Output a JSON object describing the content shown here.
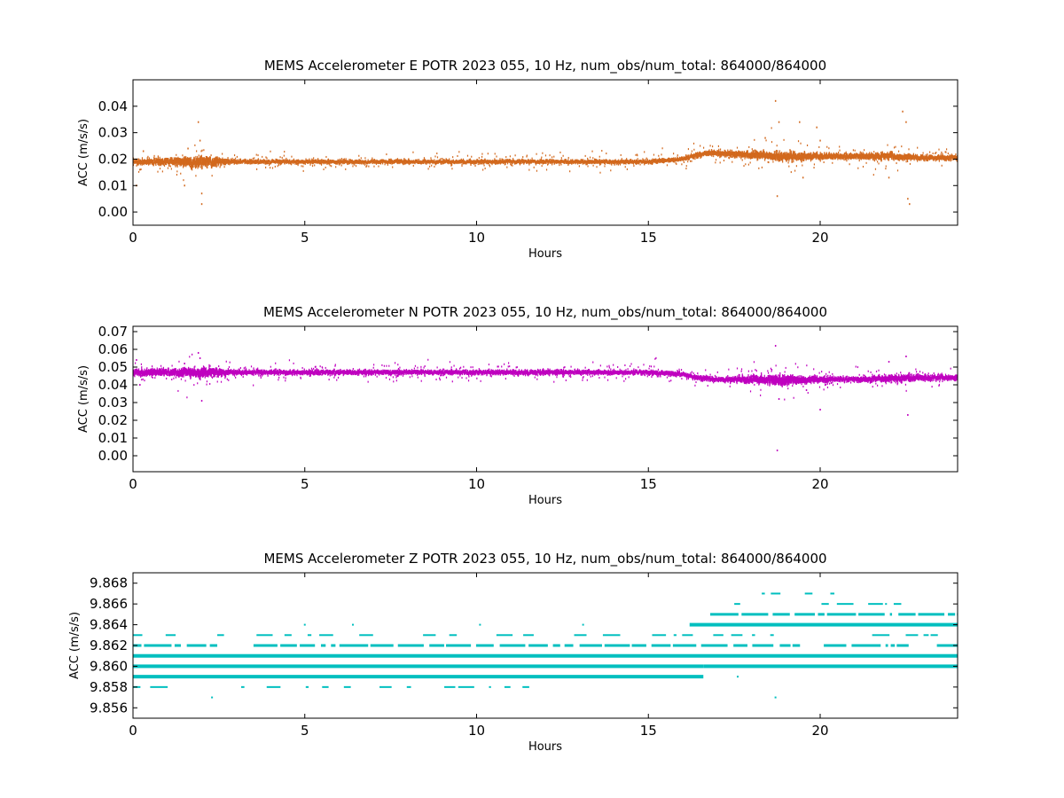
{
  "chart_data": [
    {
      "type": "scatter",
      "title": "MEMS Accelerometer E POTR 2023 055, 10 Hz, num_obs/num_total: 864000/864000",
      "xlabel": "Hours",
      "ylabel": "ACC (m/s/s)",
      "xlim": [
        0,
        24
      ],
      "ylim": [
        -0.005,
        0.05
      ],
      "xticks": [
        0,
        5,
        10,
        15,
        20
      ],
      "xtick_labels": [
        "0",
        "5",
        "10",
        "15",
        "20"
      ],
      "yticks": [
        0.0,
        0.01,
        0.02,
        0.03,
        0.04
      ],
      "ytick_labels": [
        "0.00",
        "0.01",
        "0.02",
        "0.03",
        "0.04"
      ],
      "color": "#d2691e",
      "grid": false,
      "series": [
        {
          "x": [
            0,
            1,
            2,
            3,
            4,
            5,
            6,
            7,
            8,
            9,
            10,
            11,
            12,
            13,
            14,
            15,
            15.5,
            16,
            16.3,
            16.6,
            17,
            18,
            19,
            20,
            21,
            22,
            23,
            24
          ],
          "values": [
            0.019,
            0.019,
            0.019,
            0.019,
            0.019,
            0.019,
            0.019,
            0.019,
            0.019,
            0.019,
            0.019,
            0.019,
            0.019,
            0.019,
            0.019,
            0.019,
            0.0195,
            0.02,
            0.021,
            0.0222,
            0.0222,
            0.0215,
            0.021,
            0.021,
            0.021,
            0.021,
            0.0205,
            0.0205
          ],
          "spread": [
            0.0015,
            0.002,
            0.003,
            0.0012,
            0.0012,
            0.0012,
            0.0012,
            0.0012,
            0.0012,
            0.0012,
            0.0012,
            0.0012,
            0.0012,
            0.0012,
            0.0012,
            0.0012,
            0.0012,
            0.0012,
            0.0014,
            0.0015,
            0.0015,
            0.002,
            0.0025,
            0.0018,
            0.0016,
            0.002,
            0.0015,
            0.0015
          ]
        }
      ],
      "outliers": {
        "x": [
          0.1,
          0.2,
          0.3,
          1.5,
          1.6,
          1.9,
          1.95,
          2.0,
          2.0,
          18.4,
          18.7,
          18.75,
          18.8,
          19.4,
          19.5,
          19.9,
          20.0,
          22.0,
          22.4,
          22.5,
          22.55,
          22.6
        ],
        "y": [
          0.01,
          0.016,
          0.023,
          0.01,
          0.024,
          0.034,
          0.027,
          0.007,
          0.003,
          0.028,
          0.042,
          0.006,
          0.034,
          0.034,
          0.013,
          0.032,
          0.027,
          0.013,
          0.038,
          0.034,
          0.005,
          0.003
        ]
      }
    },
    {
      "type": "scatter",
      "title": "MEMS Accelerometer N POTR 2023 055, 10 Hz, num_obs/num_total: 864000/864000",
      "xlabel": "Hours",
      "ylabel": "ACC (m/s/s)",
      "xlim": [
        0,
        24
      ],
      "ylim": [
        -0.009,
        0.073
      ],
      "xticks": [
        0,
        5,
        10,
        15,
        20
      ],
      "xtick_labels": [
        "0",
        "5",
        "10",
        "15",
        "20"
      ],
      "yticks": [
        0.0,
        0.01,
        0.02,
        0.03,
        0.04,
        0.05,
        0.06,
        0.07
      ],
      "ytick_labels": [
        "0.00",
        "0.01",
        "0.02",
        "0.03",
        "0.04",
        "0.05",
        "0.06",
        "0.07"
      ],
      "color": "#bf00bf",
      "grid": false,
      "series": [
        {
          "x": [
            0,
            1,
            2,
            3,
            4,
            5,
            6,
            7,
            8,
            9,
            10,
            11,
            12,
            13,
            14,
            15,
            15.5,
            16,
            16.3,
            16.6,
            17,
            18,
            19,
            20,
            21,
            22,
            23,
            24
          ],
          "values": [
            0.047,
            0.047,
            0.047,
            0.047,
            0.047,
            0.047,
            0.047,
            0.047,
            0.047,
            0.047,
            0.047,
            0.047,
            0.047,
            0.047,
            0.047,
            0.047,
            0.0465,
            0.046,
            0.0445,
            0.0435,
            0.043,
            0.043,
            0.0425,
            0.043,
            0.043,
            0.0435,
            0.044,
            0.044
          ],
          "spread": [
            0.003,
            0.003,
            0.004,
            0.002,
            0.002,
            0.002,
            0.002,
            0.002,
            0.002,
            0.002,
            0.002,
            0.002,
            0.002,
            0.002,
            0.002,
            0.002,
            0.002,
            0.002,
            0.002,
            0.002,
            0.002,
            0.003,
            0.004,
            0.0025,
            0.002,
            0.003,
            0.0025,
            0.002
          ]
        }
      ],
      "outliers": {
        "x": [
          0.1,
          0.2,
          1.5,
          1.9,
          1.95,
          2.0,
          18.7,
          18.75,
          18.8,
          19.6,
          20.0,
          22.0,
          22.5,
          22.55
        ],
        "y": [
          0.054,
          0.04,
          0.052,
          0.058,
          0.055,
          0.031,
          0.062,
          0.003,
          0.032,
          0.037,
          0.026,
          0.053,
          0.056,
          0.023
        ]
      }
    },
    {
      "type": "scatter",
      "title": "MEMS Accelerometer Z POTR 2023 055, 10 Hz, num_obs/num_total: 864000/864000",
      "xlabel": "Hours",
      "ylabel": "ACC (m/s/s)",
      "xlim": [
        0,
        24
      ],
      "ylim": [
        9.855,
        9.869
      ],
      "xticks": [
        0,
        5,
        10,
        15,
        20
      ],
      "xtick_labels": [
        "0",
        "5",
        "10",
        "15",
        "20"
      ],
      "yticks": [
        9.856,
        9.858,
        9.86,
        9.862,
        9.864,
        9.866,
        9.868
      ],
      "ytick_labels": [
        "9.856",
        "9.858",
        "9.860",
        "9.862",
        "9.864",
        "9.866",
        "9.868"
      ],
      "color": "#00bfbf",
      "grid": false,
      "series": [
        {
          "name": "",
          "level": 9.858,
          "segments": [
            [
              0.0,
              15.2
            ]
          ],
          "weight": "light"
        },
        {
          "name": "",
          "level": 9.859,
          "segments": [
            [
              0.0,
              16.6
            ]
          ],
          "weight": "heavy"
        },
        {
          "name": "",
          "level": 9.86,
          "segments": [
            [
              0.0,
              16.6
            ],
            [
              16.6,
              24.0
            ]
          ],
          "weight": "heavy"
        },
        {
          "name": "",
          "level": 9.861,
          "segments": [
            [
              0.0,
              24.0
            ]
          ],
          "weight": "heavy"
        },
        {
          "name": "",
          "level": 9.862,
          "segments": [
            [
              0.0,
              24.0
            ]
          ],
          "weight": "medium"
        },
        {
          "name": "",
          "level": 9.863,
          "segments": [
            [
              0.0,
              24.0
            ]
          ],
          "weight": "light"
        },
        {
          "name": "",
          "level": 9.864,
          "segments": [
            [
              16.2,
              24.0
            ]
          ],
          "weight": "heavy"
        },
        {
          "name": "",
          "level": 9.865,
          "segments": [
            [
              16.8,
              24.0
            ]
          ],
          "weight": "medium"
        },
        {
          "name": "",
          "level": 9.866,
          "segments": [
            [
              17.5,
              22.8
            ]
          ],
          "weight": "light"
        },
        {
          "name": "",
          "level": 9.867,
          "segments": [
            [
              18.3,
              21.8
            ]
          ],
          "weight": "sparse"
        }
      ],
      "outliers": {
        "x": [
          2.3,
          18.7,
          17.6,
          5.0,
          6.4,
          10.1,
          13.1
        ],
        "y": [
          9.857,
          9.857,
          9.859,
          9.864,
          9.864,
          9.864,
          9.864
        ]
      }
    }
  ]
}
